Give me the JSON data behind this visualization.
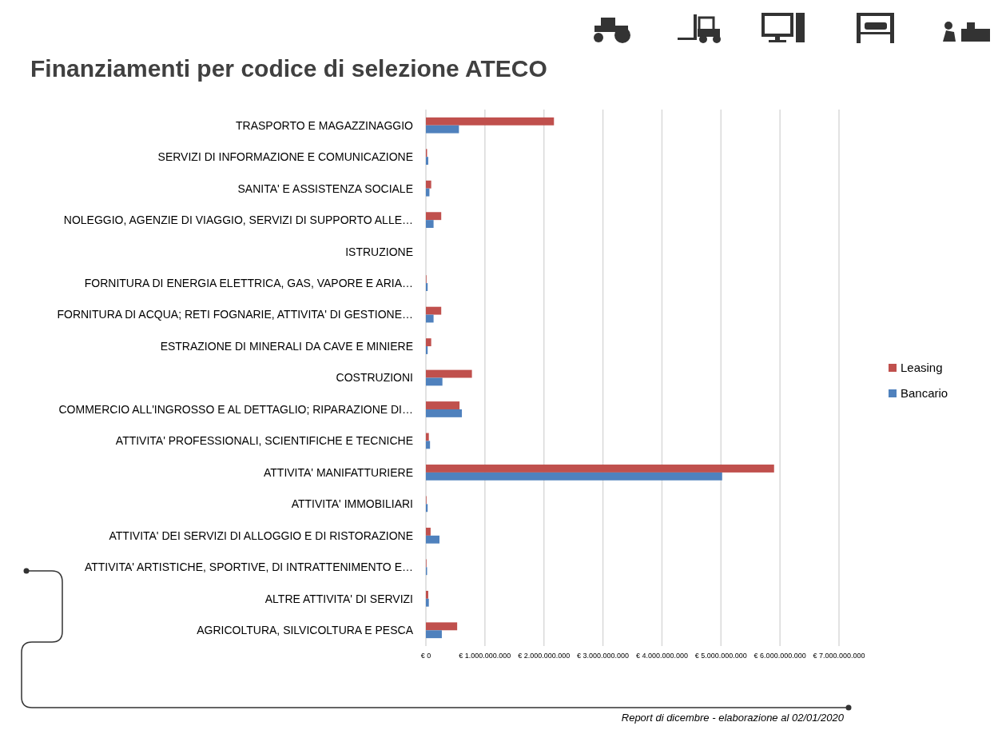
{
  "chart_data": {
    "type": "bar",
    "orientation": "horizontal",
    "title": "Finanziamenti per codice di selezione ATECO",
    "categories": [
      "TRASPORTO E MAGAZZINAGGIO",
      "SERVIZI DI INFORMAZIONE E COMUNICAZIONE",
      "SANITA' E ASSISTENZA SOCIALE",
      "NOLEGGIO, AGENZIE DI VIAGGIO, SERVIZI DI SUPPORTO ALLE…",
      "ISTRUZIONE",
      "FORNITURA DI ENERGIA ELETTRICA, GAS, VAPORE E ARIA…",
      "FORNITURA DI ACQUA; RETI FOGNARIE, ATTIVITA' DI GESTIONE…",
      "ESTRAZIONE DI MINERALI DA CAVE E MINIERE",
      "COSTRUZIONI",
      "COMMERCIO ALL'INGROSSO E AL DETTAGLIO; RIPARAZIONE DI…",
      "ATTIVITA' PROFESSIONALI, SCIENTIFICHE E TECNICHE",
      "ATTIVITA' MANIFATTURIERE",
      "ATTIVITA' IMMOBILIARI",
      "ATTIVITA' DEI SERVIZI DI ALLOGGIO E DI RISTORAZIONE",
      "ATTIVITA' ARTISTICHE, SPORTIVE, DI INTRATTENIMENTO E…",
      "ALTRE ATTIVITA' DI SERVIZI",
      "AGRICOLTURA, SILVICOLTURA E PESCA"
    ],
    "series": [
      {
        "name": "Leasing",
        "color": "#c0504d",
        "values": [
          2170000000,
          20000000,
          90000000,
          260000000,
          0,
          10000000,
          260000000,
          90000000,
          780000000,
          570000000,
          50000000,
          5900000000,
          10000000,
          80000000,
          10000000,
          40000000,
          530000000
        ]
      },
      {
        "name": "Bancario",
        "color": "#4f81bd",
        "values": [
          560000000,
          40000000,
          60000000,
          130000000,
          0,
          30000000,
          130000000,
          30000000,
          280000000,
          610000000,
          70000000,
          5020000000,
          30000000,
          230000000,
          20000000,
          50000000,
          270000000
        ]
      }
    ],
    "xlim": [
      0,
      7000000000
    ],
    "xticks": [
      {
        "value": 0,
        "label": "€ 0"
      },
      {
        "value": 1000000000,
        "label": "€ 1.000.000.000"
      },
      {
        "value": 2000000000,
        "label": "€ 2.000.000.000"
      },
      {
        "value": 3000000000,
        "label": "€ 3.000.000.000"
      },
      {
        "value": 4000000000,
        "label": "€ 4.000.000.000"
      },
      {
        "value": 5000000000,
        "label": "€ 5.000.000.000"
      },
      {
        "value": 6000000000,
        "label": "€ 6.000.000.000"
      },
      {
        "value": 7000000000,
        "label": "€ 7.000.000.000"
      }
    ],
    "grid": "x",
    "legend": "right",
    "annotations": [
      "Report di dicembre - elaborazione al 02/01/2020"
    ]
  }
}
